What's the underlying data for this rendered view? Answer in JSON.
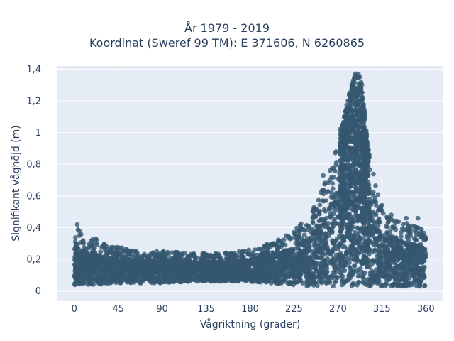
{
  "chart_data": {
    "type": "scatter",
    "title": "År 1979 - 2019",
    "subtitle": "Koordinat (Sweref 99 TM): E 371606, N 6260865",
    "xlabel": "Vågriktning (grader)",
    "ylabel": "Signifikant våghöjd (m)",
    "xlim": [
      -18,
      378
    ],
    "ylim": [
      -0.06,
      1.42
    ],
    "x_ticks": [
      0,
      45,
      90,
      135,
      180,
      225,
      270,
      315,
      360
    ],
    "x_tick_labels": [
      "0",
      "45",
      "90",
      "135",
      "180",
      "225",
      "270",
      "315",
      "360"
    ],
    "y_ticks": [
      0,
      0.2,
      0.4,
      0.6,
      0.8,
      1.0,
      1.2,
      1.4
    ],
    "y_tick_labels": [
      "0",
      "0,2",
      "0,4",
      "0,6",
      "0,8",
      "1",
      "1,2",
      "1,4"
    ],
    "grid": true,
    "legend": "none",
    "marker_color": "#34576f",
    "plot_bgcolor": "#e5ecf6",
    "envelope": {
      "x": [
        0,
        2,
        10,
        20,
        30,
        45,
        60,
        90,
        120,
        150,
        180,
        200,
        220,
        240,
        250,
        260,
        270,
        278,
        285,
        290,
        295,
        300,
        305,
        315,
        330,
        345,
        355,
        360
      ],
      "y_min": [
        0.03,
        0.04,
        0.04,
        0.04,
        0.04,
        0.05,
        0.05,
        0.05,
        0.06,
        0.06,
        0.06,
        0.05,
        0.04,
        0.03,
        0.03,
        0.03,
        0.03,
        0.03,
        0.03,
        0.03,
        0.03,
        0.03,
        0.03,
        0.03,
        0.03,
        0.03,
        0.03,
        0.03
      ],
      "y_max": [
        0.3,
        0.42,
        0.33,
        0.33,
        0.3,
        0.28,
        0.26,
        0.25,
        0.24,
        0.24,
        0.26,
        0.3,
        0.36,
        0.47,
        0.6,
        0.72,
        0.93,
        1.15,
        1.33,
        1.4,
        1.3,
        0.95,
        0.78,
        0.55,
        0.45,
        0.42,
        0.4,
        0.36
      ]
    },
    "outliers": [
      {
        "x": 3,
        "y": 0.42
      },
      {
        "x": 5,
        "y": 0.35
      },
      {
        "x": 22,
        "y": 0.33
      },
      {
        "x": 255,
        "y": 0.73
      },
      {
        "x": 262,
        "y": 0.76
      },
      {
        "x": 268,
        "y": 0.88
      },
      {
        "x": 272,
        "y": 1.02
      },
      {
        "x": 340,
        "y": 0.46
      },
      {
        "x": 352,
        "y": 0.46
      }
    ]
  }
}
